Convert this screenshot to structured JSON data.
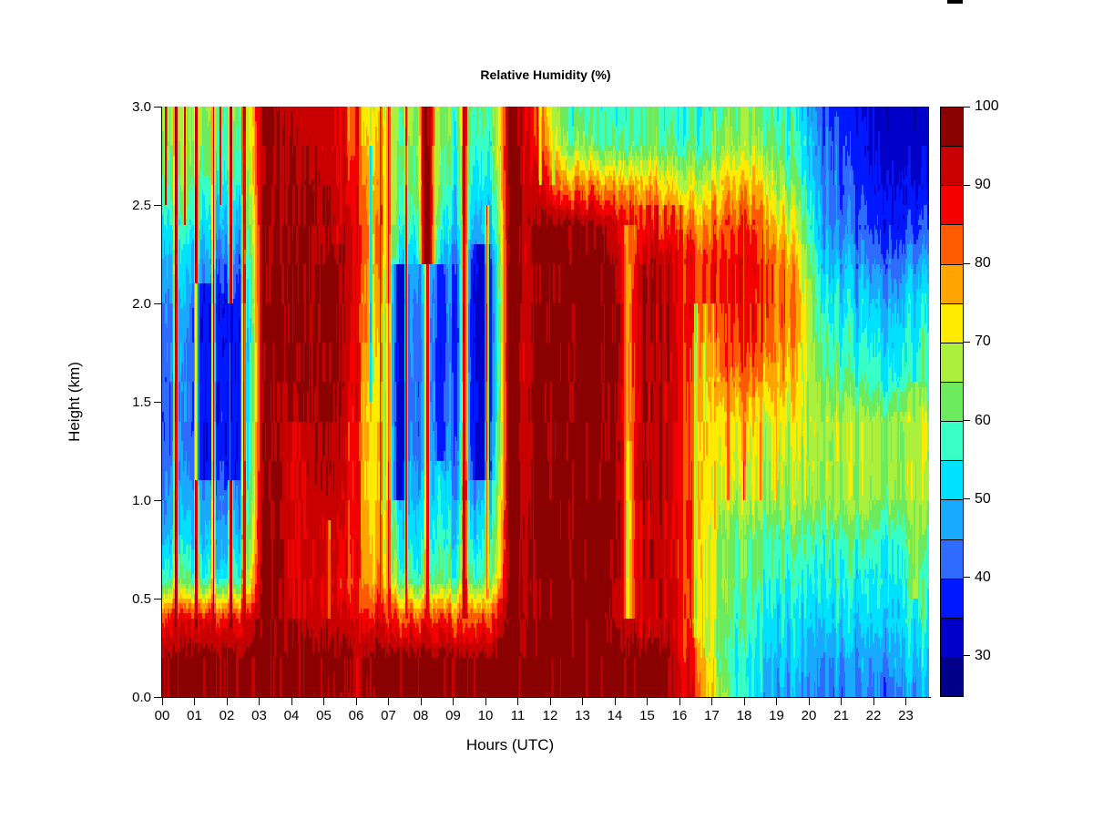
{
  "title": "Relative Humidity (%)",
  "chart_data": {
    "type": "heatmap",
    "title": "Relative Humidity (%)",
    "xlabel": "Hours (UTC)",
    "ylabel": "Height (km)",
    "x_range_hours": [
      0,
      23.72
    ],
    "y_range_km": [
      0,
      3
    ],
    "x_ticks": [
      "00",
      "01",
      "02",
      "03",
      "04",
      "05",
      "06",
      "07",
      "08",
      "09",
      "10",
      "11",
      "12",
      "13",
      "14",
      "15",
      "16",
      "17",
      "18",
      "19",
      "20",
      "21",
      "22",
      "23"
    ],
    "y_ticks": [
      "0.0",
      "0.5",
      "1.0",
      "1.5",
      "2.0",
      "2.5",
      "3.0"
    ],
    "y_tick_values": [
      0,
      0.5,
      1.0,
      1.5,
      2.0,
      2.5,
      3.0
    ],
    "grid": {
      "hours": [
        0,
        1,
        2,
        3,
        4,
        5,
        6,
        7,
        8,
        9,
        10,
        11,
        12,
        13,
        14,
        15,
        16,
        17,
        18,
        19,
        20,
        21,
        22,
        23
      ],
      "heights_km": [
        0.0,
        0.2,
        0.4,
        0.6,
        0.8,
        1.0,
        1.2,
        1.4,
        1.6,
        1.8,
        2.0,
        2.2,
        2.4,
        2.6,
        2.8,
        3.0
      ],
      "rh_values": [
        [
          97,
          97,
          97,
          97,
          97,
          95,
          96,
          97,
          97,
          97,
          97,
          97,
          97,
          97,
          97,
          97,
          85,
          62,
          50,
          46,
          44,
          43,
          45,
          48
        ],
        [
          97,
          97,
          97,
          97,
          97,
          96,
          97,
          97,
          97,
          97,
          97,
          97,
          97,
          97,
          97,
          97,
          84,
          57,
          52,
          50,
          46,
          45,
          49,
          52
        ],
        [
          88,
          88,
          88,
          97,
          93,
          92,
          89,
          83,
          84,
          83,
          84,
          97,
          97,
          97,
          93,
          96,
          80,
          60,
          55,
          52,
          51,
          51,
          53,
          56
        ],
        [
          60,
          57,
          57,
          97,
          92,
          88,
          80,
          58,
          60,
          58,
          60,
          97,
          97,
          97,
          95,
          95,
          80,
          63,
          59,
          56,
          55,
          54,
          56,
          58
        ],
        [
          52,
          50,
          50,
          97,
          92,
          90,
          78,
          52,
          55,
          52,
          55,
          97,
          97,
          97,
          95,
          95,
          80,
          62,
          60,
          59,
          58,
          58,
          59,
          61
        ],
        [
          48,
          46,
          45,
          97,
          93,
          92,
          76,
          48,
          52,
          47,
          50,
          97,
          97,
          97,
          95,
          96,
          80,
          67,
          66,
          66,
          65,
          65,
          66,
          67
        ],
        [
          45,
          42,
          40,
          97,
          94,
          94,
          75,
          45,
          48,
          43,
          45,
          97,
          97,
          97,
          95,
          96,
          80,
          70,
          68,
          68,
          66,
          66,
          67,
          68
        ],
        [
          44,
          40,
          38,
          97,
          95,
          95,
          75,
          43,
          46,
          40,
          42,
          97,
          97,
          97,
          95,
          96,
          80,
          73,
          71,
          70,
          67,
          66,
          67,
          69
        ],
        [
          45,
          39,
          37,
          97,
          96,
          96,
          76,
          43,
          45,
          39,
          40,
          97,
          97,
          97,
          96,
          96,
          80,
          80,
          78,
          74,
          62,
          58,
          58,
          60
        ],
        [
          46,
          38,
          36,
          97,
          96,
          96,
          78,
          44,
          44,
          38,
          38,
          97,
          97,
          97,
          96,
          96,
          82,
          85,
          84,
          78,
          58,
          54,
          54,
          57
        ],
        [
          48,
          40,
          38,
          97,
          96,
          96,
          80,
          45,
          45,
          39,
          38,
          97,
          97,
          97,
          96,
          96,
          84,
          88,
          86,
          80,
          55,
          50,
          50,
          54
        ],
        [
          52,
          45,
          43,
          97,
          96,
          95,
          82,
          48,
          48,
          42,
          40,
          97,
          97,
          97,
          95,
          95,
          85,
          88,
          87,
          78,
          50,
          45,
          44,
          48
        ],
        [
          57,
          52,
          50,
          97,
          95,
          94,
          84,
          55,
          55,
          50,
          45,
          97,
          97,
          95,
          88,
          82,
          78,
          84,
          82,
          70,
          46,
          40,
          38,
          40
        ],
        [
          62,
          58,
          56,
          97,
          95,
          92,
          80,
          60,
          58,
          55,
          50,
          93,
          80,
          78,
          78,
          74,
          68,
          76,
          74,
          63,
          44,
          38,
          35,
          36
        ],
        [
          66,
          62,
          60,
          97,
          94,
          90,
          75,
          62,
          60,
          58,
          55,
          88,
          65,
          60,
          62,
          60,
          58,
          65,
          65,
          58,
          42,
          36,
          33,
          33
        ],
        [
          67,
          64,
          62,
          95,
          93,
          88,
          72,
          64,
          62,
          60,
          57,
          85,
          60,
          57,
          60,
          58,
          55,
          62,
          62,
          55,
          40,
          34,
          32,
          32
        ]
      ]
    },
    "features": [
      {
        "h": 0.12,
        "w": 0.04,
        "rh": 92,
        "y0": 2.5,
        "y1": 3.0
      },
      {
        "h": 0.42,
        "w": 0.05,
        "rh": 96,
        "y0": 0.35,
        "y1": 3.0
      },
      {
        "h": 0.7,
        "w": 0.03,
        "rh": 90,
        "y0": 2.4,
        "y1": 3.0
      },
      {
        "h": 1.05,
        "w": 0.05,
        "rh": 96,
        "y0": 0.35,
        "y1": 3.0
      },
      {
        "h": 1.35,
        "w": 0.3,
        "rh": 36,
        "y0": 1.1,
        "y1": 2.1
      },
      {
        "h": 1.58,
        "w": 0.04,
        "rh": 94,
        "y0": 0.35,
        "y1": 3.0
      },
      {
        "h": 1.8,
        "w": 0.03,
        "rh": 88,
        "y0": 2.5,
        "y1": 3.0
      },
      {
        "h": 2.12,
        "w": 0.05,
        "rh": 96,
        "y0": 0.35,
        "y1": 3.0
      },
      {
        "h": 2.2,
        "w": 0.22,
        "rh": 36,
        "y0": 1.1,
        "y1": 2.0
      },
      {
        "h": 2.52,
        "w": 0.06,
        "rh": 96,
        "y0": 0.35,
        "y1": 3.0
      },
      {
        "h": 3.3,
        "w": 0.4,
        "rh": 97,
        "y0": 0.0,
        "y1": 3.0
      },
      {
        "h": 4.15,
        "w": 0.3,
        "rh": 90,
        "y0": 0.4,
        "y1": 1.4
      },
      {
        "h": 5.15,
        "w": 0.06,
        "rh": 78,
        "y0": 0.4,
        "y1": 0.9
      },
      {
        "h": 5.45,
        "w": 0.15,
        "rh": 91,
        "y0": 2.3,
        "y1": 3.0
      },
      {
        "h": 6.05,
        "w": 0.08,
        "rh": 90,
        "y0": 0.0,
        "y1": 3.0
      },
      {
        "h": 6.45,
        "w": 0.05,
        "rh": 55,
        "y0": 1.5,
        "y1": 2.8
      },
      {
        "h": 6.75,
        "w": 0.04,
        "rh": 88,
        "y0": 0.4,
        "y1": 3.0
      },
      {
        "h": 7.0,
        "w": 0.05,
        "rh": 90,
        "y0": 0.4,
        "y1": 3.0
      },
      {
        "h": 7.35,
        "w": 0.2,
        "rh": 33,
        "y0": 1.0,
        "y1": 2.2
      },
      {
        "h": 7.55,
        "w": 0.04,
        "rh": 88,
        "y0": 0.4,
        "y1": 3.0
      },
      {
        "h": 8.2,
        "w": 0.22,
        "rh": 96,
        "y0": 2.2,
        "y1": 3.0
      },
      {
        "h": 8.2,
        "w": 0.06,
        "rh": 85,
        "y0": 0.4,
        "y1": 2.2
      },
      {
        "h": 8.6,
        "w": 0.15,
        "rh": 35,
        "y0": 1.2,
        "y1": 2.2
      },
      {
        "h": 9.35,
        "w": 0.1,
        "rh": 92,
        "y0": 0.4,
        "y1": 3.0
      },
      {
        "h": 9.9,
        "w": 0.3,
        "rh": 32,
        "y0": 1.1,
        "y1": 2.3
      },
      {
        "h": 10.05,
        "w": 0.04,
        "rh": 85,
        "y0": 0.5,
        "y1": 2.5
      },
      {
        "h": 10.9,
        "w": 0.45,
        "rh": 97,
        "y0": 0.0,
        "y1": 3.0
      },
      {
        "h": 11.7,
        "w": 0.05,
        "rh": 72,
        "y0": 2.6,
        "y1": 3.0
      },
      {
        "h": 12.1,
        "w": 0.04,
        "rh": 68,
        "y0": 2.6,
        "y1": 3.0
      },
      {
        "h": 14.45,
        "w": 0.16,
        "rh": 74,
        "y0": 0.4,
        "y1": 1.3
      },
      {
        "h": 14.45,
        "w": 0.2,
        "rh": 80,
        "y0": 1.3,
        "y1": 2.4
      },
      {
        "h": 14.8,
        "w": 0.05,
        "rh": 90,
        "y0": 0.3,
        "y1": 2.5
      },
      {
        "h": 15.05,
        "w": 0.05,
        "rh": 90,
        "y0": 0.3,
        "y1": 2.5
      },
      {
        "h": 15.3,
        "w": 0.05,
        "rh": 90,
        "y0": 0.3,
        "y1": 2.5
      },
      {
        "h": 15.55,
        "w": 0.05,
        "rh": 90,
        "y0": 0.3,
        "y1": 2.5
      },
      {
        "h": 15.8,
        "w": 0.05,
        "rh": 90,
        "y0": 0.3,
        "y1": 2.5
      },
      {
        "h": 16.05,
        "w": 0.05,
        "rh": 90,
        "y0": 0.3,
        "y1": 2.5
      },
      {
        "h": 16.5,
        "w": 0.06,
        "rh": 68,
        "y0": 0.3,
        "y1": 2.0
      },
      {
        "h": 16.8,
        "w": 0.05,
        "rh": 70,
        "y0": 0.2,
        "y1": 2.0
      },
      {
        "h": 17.05,
        "w": 0.05,
        "rh": 68,
        "y0": 0.2,
        "y1": 2.0
      },
      {
        "h": 17.5,
        "w": 0.04,
        "rh": 82,
        "y0": 1.0,
        "y1": 2.4
      },
      {
        "h": 18.0,
        "w": 0.04,
        "rh": 82,
        "y0": 1.0,
        "y1": 2.4
      },
      {
        "h": 18.5,
        "w": 0.04,
        "rh": 80,
        "y0": 1.0,
        "y1": 2.4
      },
      {
        "h": 19.0,
        "w": 0.04,
        "rh": 80,
        "y0": 1.0,
        "y1": 2.4
      },
      {
        "h": 23.3,
        "w": 0.1,
        "rh": 70,
        "y0": 0.5,
        "y1": 1.6
      }
    ],
    "colorbar": {
      "min": 25,
      "max": 100,
      "step": 5,
      "tick_values": [
        30,
        40,
        50,
        60,
        70,
        80,
        90,
        100
      ],
      "tick_labels": [
        "30",
        "40",
        "50",
        "60",
        "70",
        "80",
        "90",
        "100"
      ],
      "colors": [
        "#00008B",
        "#0000C8",
        "#0018FF",
        "#2E6BFF",
        "#19AAFF",
        "#00E0FF",
        "#38FFC5",
        "#6CEB5F",
        "#AAF03C",
        "#FFEB00",
        "#FFA500",
        "#FF5A00",
        "#F50000",
        "#C80000",
        "#8B0000"
      ]
    },
    "texture": {
      "seed": 20240117,
      "column_noise_amp_flat": 2,
      "column_noise_amp_mixed": 6.5,
      "cell_noise_amp": 2.2
    },
    "legend_position": "right",
    "grid_lines": false
  }
}
